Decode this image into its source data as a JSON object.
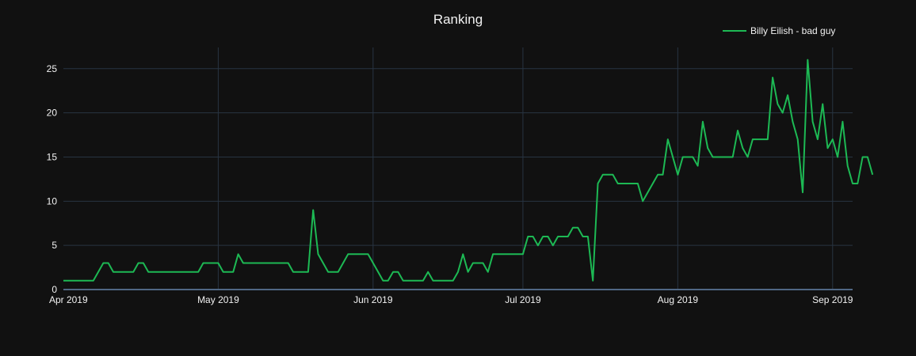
{
  "chart_data": {
    "type": "line",
    "title": "Ranking",
    "xlabel": "",
    "ylabel": "",
    "legend_position": "top-right",
    "grid": true,
    "xlim": [
      "2019-03-31",
      "2019-09-05"
    ],
    "ylim": [
      0,
      27.4
    ],
    "x_ticks": [
      "2019-04-01",
      "2019-05-01",
      "2019-06-01",
      "2019-07-01",
      "2019-08-01",
      "2019-09-01"
    ],
    "x_tick_labels": [
      "Apr 2019",
      "May 2019",
      "Jun 2019",
      "Jul 2019",
      "Aug 2019",
      "Sep 2019"
    ],
    "y_ticks": [
      0,
      5,
      10,
      15,
      20,
      25
    ],
    "y_tick_labels": [
      "0",
      "5",
      "10",
      "15",
      "20",
      "25"
    ],
    "colors": {
      "background": "#111111",
      "series": "#1db954"
    },
    "series": [
      {
        "name": "Billy Eilish - bad guy",
        "points": [
          [
            "2019-03-31",
            1
          ],
          [
            "2019-04-06",
            1
          ],
          [
            "2019-04-08",
            3
          ],
          [
            "2019-04-09",
            3
          ],
          [
            "2019-04-10",
            2
          ],
          [
            "2019-04-14",
            2
          ],
          [
            "2019-04-15",
            3
          ],
          [
            "2019-04-16",
            3
          ],
          [
            "2019-04-17",
            2
          ],
          [
            "2019-04-27",
            2
          ],
          [
            "2019-04-28",
            3
          ],
          [
            "2019-04-30",
            3
          ],
          [
            "2019-05-01",
            3
          ],
          [
            "2019-05-02",
            2
          ],
          [
            "2019-05-03",
            2
          ],
          [
            "2019-05-04",
            2
          ],
          [
            "2019-05-05",
            4
          ],
          [
            "2019-05-06",
            3
          ],
          [
            "2019-05-15",
            3
          ],
          [
            "2019-05-16",
            2
          ],
          [
            "2019-05-19",
            2
          ],
          [
            "2019-05-20",
            9
          ],
          [
            "2019-05-21",
            4
          ],
          [
            "2019-05-23",
            2
          ],
          [
            "2019-05-25",
            2
          ],
          [
            "2019-05-27",
            4
          ],
          [
            "2019-05-30",
            4
          ],
          [
            "2019-05-31",
            4
          ],
          [
            "2019-06-03",
            1
          ],
          [
            "2019-06-04",
            1
          ],
          [
            "2019-06-05",
            2
          ],
          [
            "2019-06-06",
            2
          ],
          [
            "2019-06-07",
            1
          ],
          [
            "2019-06-11",
            1
          ],
          [
            "2019-06-12",
            2
          ],
          [
            "2019-06-13",
            1
          ],
          [
            "2019-06-17",
            1
          ],
          [
            "2019-06-18",
            2
          ],
          [
            "2019-06-19",
            4
          ],
          [
            "2019-06-20",
            2
          ],
          [
            "2019-06-21",
            3
          ],
          [
            "2019-06-23",
            3
          ],
          [
            "2019-06-24",
            2
          ],
          [
            "2019-06-25",
            4
          ],
          [
            "2019-06-30",
            4
          ],
          [
            "2019-07-01",
            4
          ],
          [
            "2019-07-02",
            6
          ],
          [
            "2019-07-03",
            6
          ],
          [
            "2019-07-04",
            5
          ],
          [
            "2019-07-05",
            6
          ],
          [
            "2019-07-06",
            6
          ],
          [
            "2019-07-07",
            5
          ],
          [
            "2019-07-08",
            6
          ],
          [
            "2019-07-10",
            6
          ],
          [
            "2019-07-11",
            7
          ],
          [
            "2019-07-12",
            7
          ],
          [
            "2019-07-13",
            6
          ],
          [
            "2019-07-14",
            6
          ],
          [
            "2019-07-15",
            1
          ],
          [
            "2019-07-16",
            12
          ],
          [
            "2019-07-17",
            13
          ],
          [
            "2019-07-19",
            13
          ],
          [
            "2019-07-20",
            12
          ],
          [
            "2019-07-24",
            12
          ],
          [
            "2019-07-25",
            10
          ],
          [
            "2019-07-28",
            13
          ],
          [
            "2019-07-29",
            13
          ],
          [
            "2019-07-30",
            17
          ],
          [
            "2019-07-31",
            15
          ],
          [
            "2019-08-01",
            13
          ],
          [
            "2019-08-02",
            15
          ],
          [
            "2019-08-04",
            15
          ],
          [
            "2019-08-05",
            14
          ],
          [
            "2019-08-06",
            19
          ],
          [
            "2019-08-07",
            16
          ],
          [
            "2019-08-08",
            15
          ],
          [
            "2019-08-12",
            15
          ],
          [
            "2019-08-13",
            18
          ],
          [
            "2019-08-14",
            16
          ],
          [
            "2019-08-15",
            15
          ],
          [
            "2019-08-16",
            17
          ],
          [
            "2019-08-19",
            17
          ],
          [
            "2019-08-20",
            24
          ],
          [
            "2019-08-21",
            21
          ],
          [
            "2019-08-22",
            20
          ],
          [
            "2019-08-23",
            22
          ],
          [
            "2019-08-24",
            19
          ],
          [
            "2019-08-25",
            17
          ],
          [
            "2019-08-26",
            11
          ],
          [
            "2019-08-27",
            26
          ],
          [
            "2019-08-28",
            19
          ],
          [
            "2019-08-29",
            17
          ],
          [
            "2019-08-30",
            21
          ],
          [
            "2019-08-31",
            16
          ],
          [
            "2019-09-01",
            17
          ],
          [
            "2019-09-02",
            15
          ],
          [
            "2019-09-03",
            19
          ],
          [
            "2019-09-04",
            14
          ],
          [
            "2019-09-05",
            12
          ],
          [
            "2019-09-06",
            12
          ],
          [
            "2019-09-07",
            15
          ],
          [
            "2019-09-08",
            15
          ],
          [
            "2019-09-09",
            13
          ]
        ]
      }
    ]
  }
}
